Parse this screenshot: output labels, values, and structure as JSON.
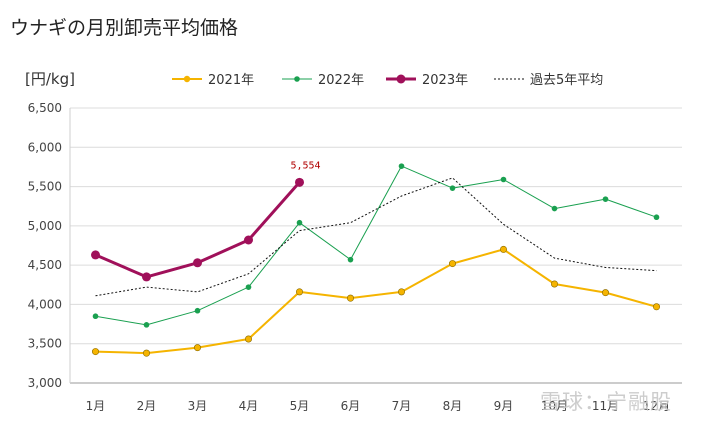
{
  "chart_data": {
    "type": "line",
    "title": "ウナギの月別卸売平均価格",
    "ylabel": "[円/kg]",
    "xlabel": "",
    "categories": [
      "1月",
      "2月",
      "3月",
      "4月",
      "5月",
      "6月",
      "7月",
      "8月",
      "9月",
      "10月",
      "11月",
      "12月"
    ],
    "ylim": [
      3000,
      6500
    ],
    "yticks": [
      3000,
      3500,
      4000,
      4500,
      5000,
      5500,
      6000,
      6500
    ],
    "ytick_labels": [
      "3,000",
      "3,500",
      "4,000",
      "4,500",
      "5,000",
      "5,500",
      "6,000",
      "6,500"
    ],
    "grid": true,
    "legend_position": "top",
    "series": [
      {
        "name": "2021年",
        "color": "#f5b400",
        "style": "solid-marker",
        "values": [
          3400,
          3380,
          3450,
          3560,
          4160,
          4080,
          4160,
          4520,
          4700,
          4260,
          4150,
          3970
        ]
      },
      {
        "name": "2022年",
        "color": "#1aa050",
        "style": "thin-marker",
        "values": [
          3850,
          3740,
          3920,
          4220,
          5040,
          4570,
          5760,
          5480,
          5590,
          5220,
          5340,
          5110
        ]
      },
      {
        "name": "2023年",
        "color": "#a0105a",
        "style": "bold-marker",
        "values": [
          4630,
          4350,
          4530,
          4820,
          5554,
          null,
          null,
          null,
          null,
          null,
          null,
          null
        ]
      },
      {
        "name": "過去5年平均",
        "color": "#111111",
        "style": "dotted",
        "values": [
          4110,
          4220,
          4160,
          4390,
          4940,
          5040,
          5380,
          5610,
          5020,
          4590,
          4470,
          4430
        ]
      }
    ],
    "annotations": [
      {
        "series": "2023年",
        "category": "5月",
        "text": "5,554"
      }
    ]
  },
  "watermark": "雪球：宁融股"
}
